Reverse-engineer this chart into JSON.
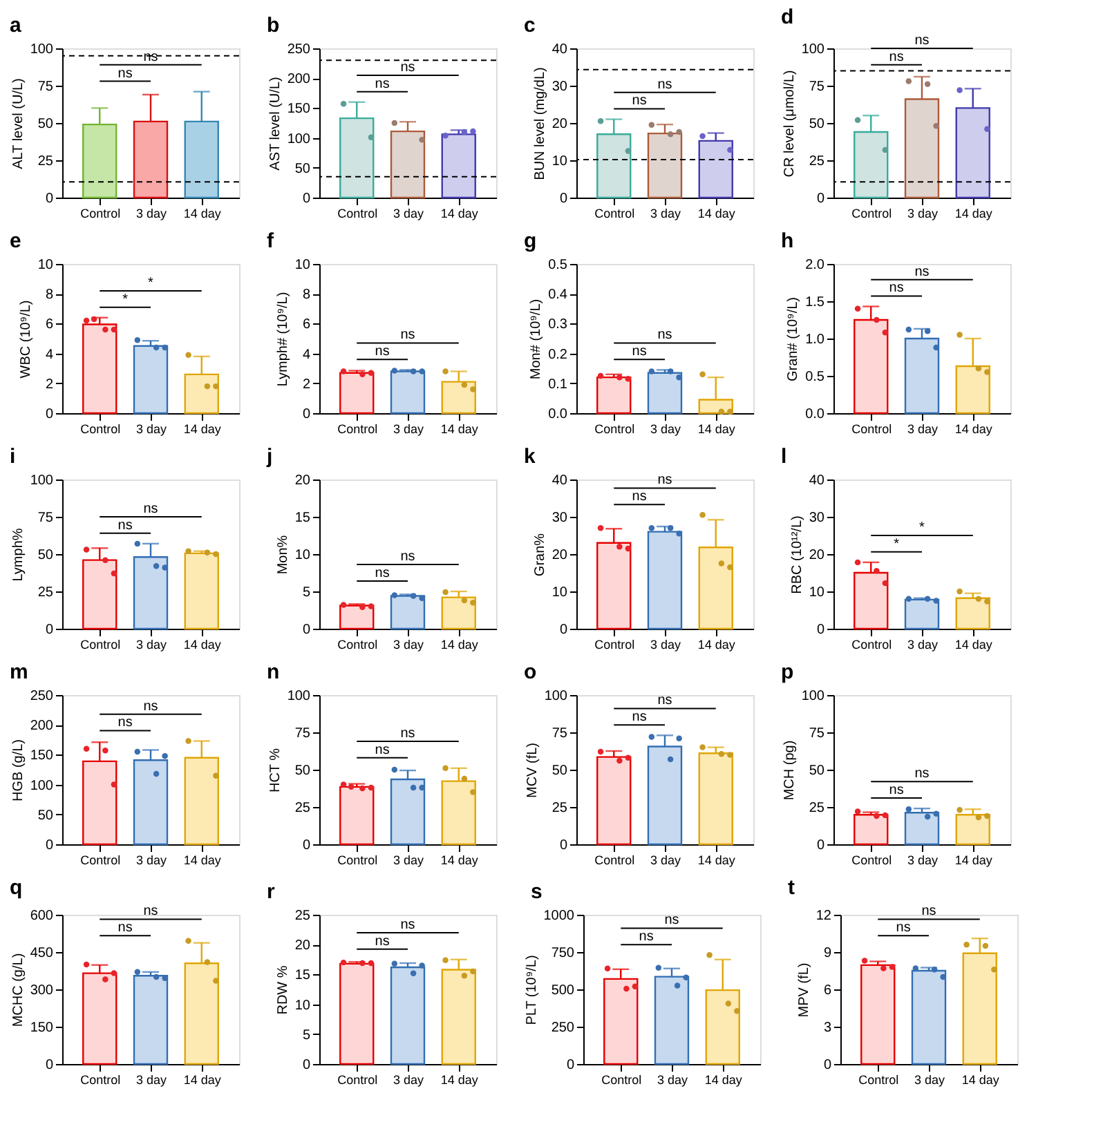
{
  "chart_data": [
    {
      "type": "bar",
      "title": "a",
      "ylabel": "ALT level (U/L)",
      "categories": [
        "Control",
        "3 day",
        "14 day"
      ],
      "ylim": [
        0,
        100
      ],
      "yticks": [
        0,
        25,
        50,
        75,
        100
      ],
      "ref_lines": [
        {
          "axis": "y",
          "value": 95,
          "line_style": "dashed",
          "color": "#000000"
        },
        {
          "axis": "y",
          "value": 10.5,
          "line_style": "dashed",
          "color": "#000000"
        }
      ],
      "annotations": [
        "ns",
        "ns"
      ],
      "series": [
        {
          "type": "bar",
          "colors": [
            "#c5e6a6",
            "#f9a7a7",
            "#a9d1e6"
          ],
          "values": [
            49,
            51,
            51
          ],
          "errors": [
            [
              49,
              60
            ],
            [
              51,
              69
            ],
            [
              51,
              71
            ]
          ]
        }
      ]
    },
    {
      "type": "bar",
      "title": "b",
      "ylabel": "AST level (U/L)",
      "categories": [
        "Control",
        "3 day",
        "14 day"
      ],
      "ylim": [
        0,
        250
      ],
      "yticks": [
        0,
        50,
        100,
        150,
        200,
        250
      ],
      "ref_lines": [
        {
          "axis": "y",
          "value": 230,
          "line_style": "dashed",
          "color": "#000000"
        },
        {
          "axis": "y",
          "value": 35,
          "line_style": "dashed",
          "color": "#000000"
        }
      ],
      "annotations": [
        "ns",
        "ns"
      ],
      "series": [
        {
          "type": "bar",
          "colors": [
            "#cfe3e0",
            "#e0d4cf",
            "#cfcdee"
          ],
          "values": [
            133,
            111,
            106
          ],
          "errors": [
            [
              133,
              160
            ],
            [
              111,
              127
            ],
            [
              106,
              113
            ]
          ]
        },
        {
          "type": "scatter",
          "x": [
            "Control",
            "Control",
            "3 day",
            "3 day",
            "14 day",
            "14 day",
            "14 day"
          ],
          "colors": [
            "#5b9e96",
            "#5b9e96",
            "#9b7b6e",
            "#9b7b6e",
            "#6a63c9",
            "#6a63c9",
            "#6a63c9"
          ],
          "values": [
            157,
            101,
            125,
            97,
            104,
            110,
            111
          ]
        }
      ]
    },
    {
      "type": "bar",
      "title": "c",
      "ylabel": "BUN level (mg/dL)",
      "categories": [
        "Control",
        "3 day",
        "14 day"
      ],
      "ylim": [
        0,
        40
      ],
      "yticks": [
        0,
        10,
        20,
        30,
        40
      ],
      "ref_lines": [
        {
          "axis": "y",
          "value": 34.3,
          "line_style": "dashed",
          "color": "#000000"
        },
        {
          "axis": "y",
          "value": 10.2,
          "line_style": "dashed",
          "color": "#000000"
        }
      ],
      "annotations": [
        "ns",
        "ns"
      ],
      "series": [
        {
          "type": "bar",
          "colors": [
            "#cfe3e0",
            "#e0d4cf",
            "#cfcdee"
          ],
          "values": [
            17,
            17.2,
            15.2
          ],
          "errors": [
            [
              17,
              21
            ],
            [
              17.2,
              19.6
            ],
            [
              15.2,
              17.3
            ]
          ]
        },
        {
          "type": "scatter",
          "x": [
            "Control",
            "Control",
            "3 day",
            "3 day",
            "3 day",
            "14 day",
            "14 day"
          ],
          "colors": [
            "#5b9e96",
            "#5b9e96",
            "#9b7b6e",
            "#9b7b6e",
            "#9b7b6e",
            "#6a63c9",
            "#6a63c9"
          ],
          "values": [
            20.5,
            12.5,
            19.5,
            17,
            17.6,
            16.5,
            12.8
          ]
        }
      ]
    },
    {
      "type": "bar",
      "title": "d",
      "ylabel": "CR level (μmol/L)",
      "categories": [
        "Control",
        "3 day",
        "14 day"
      ],
      "ylim": [
        0,
        100
      ],
      "yticks": [
        0,
        25,
        50,
        75,
        100
      ],
      "ref_lines": [
        {
          "axis": "y",
          "value": 85,
          "line_style": "dashed",
          "color": "#000000"
        },
        {
          "axis": "y",
          "value": 10.5,
          "line_style": "dashed",
          "color": "#000000"
        }
      ],
      "annotations": [
        "ns",
        "ns"
      ],
      "series": [
        {
          "type": "bar",
          "colors": [
            "#cfe3e0",
            "#e0d4cf",
            "#cfcdee"
          ],
          "values": [
            44,
            66,
            60
          ],
          "errors": [
            [
              44,
              55
            ],
            [
              66,
              81
            ],
            [
              60,
              73
            ]
          ]
        },
        {
          "type": "scatter",
          "x": [
            "Control",
            "Control",
            "3 day",
            "3 day",
            "3 day",
            "14 day",
            "14 day"
          ],
          "colors": [
            "#5b9e96",
            "#5b9e96",
            "#9b7b6e",
            "#9b7b6e",
            "#9b7b6e",
            "#6a63c9",
            "#6a63c9"
          ],
          "values": [
            52,
            32,
            78,
            76,
            48,
            72,
            46
          ]
        }
      ]
    },
    {
      "type": "bar",
      "title": "e",
      "ylabel": "WBC (10⁹/L)",
      "categories": [
        "Control",
        "3 day",
        "14 day"
      ],
      "ylim": [
        0,
        10
      ],
      "yticks": [
        0,
        2,
        4,
        6,
        8,
        10
      ],
      "annotations": [
        "*",
        "*"
      ],
      "series": [
        {
          "type": "bar",
          "colors": [
            "#ffd6d6",
            "#c6d9ef",
            "#fde9b2"
          ],
          "values": [
            5.95,
            4.5,
            2.6
          ],
          "errors": [
            [
              5.95,
              6.4
            ],
            [
              4.5,
              4.85
            ],
            [
              2.6,
              3.8
            ]
          ]
        },
        {
          "type": "scatter",
          "x": [
            "Control",
            "Control",
            "Control",
            "Control",
            "3 day",
            "3 day",
            "3 day",
            "14 day",
            "14 day",
            "14 day"
          ],
          "colors": [
            "#e8232a",
            "#e8232a",
            "#e8232a",
            "#e8232a",
            "#3a6fb0",
            "#3a6fb0",
            "#3a6fb0",
            "#c89b22",
            "#c89b22",
            "#c89b22"
          ],
          "values": [
            6.2,
            6.3,
            5.6,
            5.6,
            4.9,
            4.4,
            4.4,
            3.9,
            1.8,
            1.8
          ]
        }
      ]
    },
    {
      "type": "bar",
      "title": "f",
      "ylabel": "Lymph# (10⁹/L)",
      "categories": [
        "Control",
        "3 day",
        "14 day"
      ],
      "ylim": [
        0,
        10
      ],
      "yticks": [
        0,
        2,
        4,
        6,
        8,
        10
      ],
      "annotations": [
        "ns",
        "ns"
      ],
      "series": [
        {
          "type": "bar",
          "colors": [
            "#ffd6d6",
            "#c6d9ef",
            "#fde9b2"
          ],
          "values": [
            2.7,
            2.8,
            2.1
          ],
          "errors": [
            [
              2.7,
              2.85
            ],
            [
              2.8,
              2.9
            ],
            [
              2.1,
              2.8
            ]
          ]
        },
        {
          "type": "scatter",
          "x": [
            "Control",
            "Control",
            "Control",
            "3 day",
            "3 day",
            "3 day",
            "14 day",
            "14 day",
            "14 day"
          ],
          "colors": [
            "#e8232a",
            "#e8232a",
            "#e8232a",
            "#3a6fb0",
            "#3a6fb0",
            "#3a6fb0",
            "#c89b22",
            "#c89b22",
            "#c89b22"
          ],
          "values": [
            2.8,
            2.6,
            2.7,
            2.85,
            2.8,
            2.8,
            2.8,
            1.9,
            1.6
          ]
        }
      ]
    },
    {
      "type": "bar",
      "title": "g",
      "ylabel": "Mon# (10⁹/L)",
      "categories": [
        "Control",
        "3 day",
        "14 day"
      ],
      "ylim": [
        0,
        0.5
      ],
      "yticks": [
        {
          "value": 0,
          "label": "0.0"
        },
        0.1,
        0.2,
        0.3,
        0.4,
        0.5
      ],
      "annotations": [
        "ns",
        "ns"
      ],
      "series": [
        {
          "type": "bar",
          "colors": [
            "#ffd6d6",
            "#c6d9ef",
            "#fde9b2"
          ],
          "values": [
            0.12,
            0.135,
            0.045
          ],
          "errors": [
            [
              0.12,
              0.13
            ],
            [
              0.135,
              0.145
            ],
            [
              0.045,
              0.12
            ]
          ]
        },
        {
          "type": "scatter",
          "x": [
            "Control",
            "Control",
            "Control",
            "3 day",
            "3 day",
            "3 day",
            "14 day",
            "14 day",
            "14 day"
          ],
          "colors": [
            "#e8232a",
            "#e8232a",
            "#e8232a",
            "#3a6fb0",
            "#3a6fb0",
            "#3a6fb0",
            "#c89b22",
            "#c89b22",
            "#c89b22"
          ],
          "values": [
            0.125,
            0.12,
            0.115,
            0.14,
            0.14,
            0.12,
            0.13,
            0.005,
            0.005
          ]
        }
      ]
    },
    {
      "type": "bar",
      "title": "h",
      "ylabel": "Gran# (10⁹/L)",
      "categories": [
        "Control",
        "3 day",
        "14 day"
      ],
      "ylim": [
        0,
        2
      ],
      "yticks": [
        {
          "value": 0,
          "label": "0.0"
        },
        0.5,
        {
          "value": 1,
          "label": "1.0"
        },
        1.5,
        {
          "value": 2,
          "label": "2.0"
        }
      ],
      "annotations": [
        "ns",
        "ns"
      ],
      "series": [
        {
          "type": "bar",
          "colors": [
            "#ffd6d6",
            "#c6d9ef",
            "#fde9b2"
          ],
          "values": [
            1.25,
            1.0,
            0.63
          ],
          "errors": [
            [
              1.25,
              1.43
            ],
            [
              1.0,
              1.13
            ],
            [
              0.63,
              1.0
            ]
          ]
        },
        {
          "type": "scatter",
          "x": [
            "Control",
            "Control",
            "Control",
            "3 day",
            "3 day",
            "3 day",
            "14 day",
            "14 day",
            "14 day"
          ],
          "colors": [
            "#e8232a",
            "#e8232a",
            "#e8232a",
            "#3a6fb0",
            "#3a6fb0",
            "#3a6fb0",
            "#c89b22",
            "#c89b22",
            "#c89b22"
          ],
          "values": [
            1.4,
            1.25,
            1.08,
            1.12,
            1.1,
            0.88,
            1.05,
            0.6,
            0.55
          ]
        }
      ]
    },
    {
      "type": "bar",
      "title": "i",
      "ylabel": "Lymph%",
      "categories": [
        "Control",
        "3 day",
        "14 day"
      ],
      "ylim": [
        0,
        100
      ],
      "yticks": [
        0,
        25,
        50,
        75,
        100
      ],
      "annotations": [
        "ns",
        "ns"
      ],
      "series": [
        {
          "type": "bar",
          "colors": [
            "#ffd6d6",
            "#c6d9ef",
            "#fde9b2"
          ],
          "values": [
            46,
            48,
            50.5
          ],
          "errors": [
            [
              46,
              54
            ],
            [
              48,
              57
            ],
            [
              50.5,
              52
            ]
          ]
        },
        {
          "type": "scatter",
          "x": [
            "Control",
            "Control",
            "Control",
            "3 day",
            "3 day",
            "3 day",
            "14 day",
            "14 day",
            "14 day"
          ],
          "colors": [
            "#e8232a",
            "#e8232a",
            "#e8232a",
            "#3a6fb0",
            "#3a6fb0",
            "#3a6fb0",
            "#c89b22",
            "#c89b22",
            "#c89b22"
          ],
          "values": [
            53,
            46,
            37,
            57,
            42,
            41,
            52,
            51,
            50
          ]
        }
      ]
    },
    {
      "type": "bar",
      "title": "j",
      "ylabel": "Mon%",
      "categories": [
        "Control",
        "3 day",
        "14 day"
      ],
      "ylim": [
        0,
        20
      ],
      "yticks": [
        0,
        5,
        10,
        15,
        20
      ],
      "annotations": [
        "ns",
        "ns"
      ],
      "series": [
        {
          "type": "bar",
          "colors": [
            "#ffd6d6",
            "#c6d9ef",
            "#fde9b2"
          ],
          "values": [
            3.1,
            4.4,
            4.2
          ],
          "errors": [
            [
              3.1,
              3.3
            ],
            [
              4.4,
              4.6
            ],
            [
              4.2,
              5.0
            ]
          ]
        },
        {
          "type": "scatter",
          "x": [
            "Control",
            "Control",
            "Control",
            "3 day",
            "3 day",
            "3 day",
            "14 day",
            "14 day",
            "14 day"
          ],
          "colors": [
            "#e8232a",
            "#e8232a",
            "#e8232a",
            "#3a6fb0",
            "#3a6fb0",
            "#3a6fb0",
            "#c89b22",
            "#c89b22",
            "#c89b22"
          ],
          "values": [
            3.2,
            2.9,
            3.0,
            4.5,
            4.4,
            4.1,
            4.9,
            3.8,
            3.5
          ]
        }
      ]
    },
    {
      "type": "bar",
      "title": "k",
      "ylabel": "Gran%",
      "categories": [
        "Control",
        "3 day",
        "14 day"
      ],
      "ylim": [
        0,
        40
      ],
      "yticks": [
        0,
        10,
        20,
        30,
        40
      ],
      "annotations": [
        "ns",
        "ns"
      ],
      "series": [
        {
          "type": "bar",
          "colors": [
            "#ffd6d6",
            "#c6d9ef",
            "#fde9b2"
          ],
          "values": [
            23,
            26,
            21.8
          ],
          "errors": [
            [
              23,
              26.8
            ],
            [
              26,
              27.4
            ],
            [
              21.8,
              29.2
            ]
          ]
        },
        {
          "type": "scatter",
          "x": [
            "Control",
            "Control",
            "Control",
            "3 day",
            "3 day",
            "3 day",
            "14 day",
            "14 day",
            "14 day"
          ],
          "colors": [
            "#e8232a",
            "#e8232a",
            "#e8232a",
            "#3a6fb0",
            "#3a6fb0",
            "#3a6fb0",
            "#c89b22",
            "#c89b22",
            "#c89b22"
          ],
          "values": [
            27,
            22,
            21.5,
            27,
            27,
            25.5,
            30.5,
            17.5,
            16.5
          ]
        }
      ]
    },
    {
      "type": "bar",
      "title": "l",
      "ylabel": "RBC (10¹²/L)",
      "categories": [
        "Control",
        "3 day",
        "14 day"
      ],
      "ylim": [
        0,
        40
      ],
      "yticks": [
        0,
        10,
        20,
        30,
        40
      ],
      "annotations": [
        "*",
        "*"
      ],
      "series": [
        {
          "type": "bar",
          "colors": [
            "#ffd6d6",
            "#c6d9ef",
            "#fde9b2"
          ],
          "values": [
            15,
            7.8,
            8.2
          ],
          "errors": [
            [
              15,
              17.8
            ],
            [
              7.8,
              8.2
            ],
            [
              8.2,
              9.5
            ]
          ]
        },
        {
          "type": "scatter",
          "x": [
            "Control",
            "Control",
            "Control",
            "3 day",
            "3 day",
            "3 day",
            "14 day",
            "14 day",
            "14 day"
          ],
          "colors": [
            "#e8232a",
            "#e8232a",
            "#e8232a",
            "#3a6fb0",
            "#3a6fb0",
            "#3a6fb0",
            "#c89b22",
            "#c89b22",
            "#c89b22"
          ],
          "values": [
            17.8,
            15.5,
            12.2,
            8,
            8,
            7.5,
            10,
            8,
            7.3
          ]
        }
      ]
    },
    {
      "type": "bar",
      "title": "m",
      "ylabel": "HGB (g/L)",
      "categories": [
        "Control",
        "3 day",
        "14 day"
      ],
      "ylim": [
        0,
        250
      ],
      "yticks": [
        0,
        50,
        100,
        150,
        200,
        250
      ],
      "annotations": [
        "ns",
        "ns"
      ],
      "series": [
        {
          "type": "bar",
          "colors": [
            "#ffd6d6",
            "#c6d9ef",
            "#fde9b2"
          ],
          "values": [
            139,
            141,
            145
          ],
          "errors": [
            [
              139,
              171
            ],
            [
              141,
              158
            ],
            [
              145,
              173
            ]
          ]
        },
        {
          "type": "scatter",
          "x": [
            "Control",
            "Control",
            "Control",
            "3 day",
            "3 day",
            "3 day",
            "14 day",
            "14 day"
          ],
          "colors": [
            "#e8232a",
            "#e8232a",
            "#e8232a",
            "#3a6fb0",
            "#3a6fb0",
            "#3a6fb0",
            "#c89b22",
            "#c89b22"
          ],
          "values": [
            160,
            157,
            100,
            155,
            118,
            148,
            173,
            115
          ]
        }
      ]
    },
    {
      "type": "bar",
      "title": "n",
      "ylabel": "HCT %",
      "categories": [
        "Control",
        "3 day",
        "14 day"
      ],
      "ylim": [
        0,
        100
      ],
      "yticks": [
        0,
        25,
        50,
        75,
        100
      ],
      "annotations": [
        "ns",
        "ns"
      ],
      "series": [
        {
          "type": "bar",
          "colors": [
            "#ffd6d6",
            "#c6d9ef",
            "#fde9b2"
          ],
          "values": [
            38.5,
            43.5,
            42.3
          ],
          "errors": [
            [
              38.5,
              40.5
            ],
            [
              43.5,
              49.5
            ],
            [
              42.3,
              51
            ]
          ]
        },
        {
          "type": "scatter",
          "x": [
            "Control",
            "Control",
            "Control",
            "Control",
            "3 day",
            "3 day",
            "3 day",
            "14 day",
            "14 day",
            "14 day"
          ],
          "colors": [
            "#e8232a",
            "#e8232a",
            "#e8232a",
            "#e8232a",
            "#3a6fb0",
            "#3a6fb0",
            "#3a6fb0",
            "#c89b22",
            "#c89b22",
            "#c89b22"
          ],
          "values": [
            40,
            38.5,
            37.5,
            38,
            50,
            38,
            38,
            51,
            44,
            35
          ]
        }
      ]
    },
    {
      "type": "bar",
      "title": "o",
      "ylabel": "MCV (fL)",
      "categories": [
        "Control",
        "3 day",
        "14 day"
      ],
      "ylim": [
        0,
        100
      ],
      "yticks": [
        0,
        25,
        50,
        75,
        100
      ],
      "annotations": [
        "ns",
        "ns"
      ],
      "series": [
        {
          "type": "bar",
          "colors": [
            "#ffd6d6",
            "#c6d9ef",
            "#fde9b2"
          ],
          "values": [
            58.5,
            65.5,
            61
          ],
          "errors": [
            [
              58.5,
              62.5
            ],
            [
              65.5,
              73
            ],
            [
              61,
              65
            ]
          ]
        },
        {
          "type": "scatter",
          "x": [
            "Control",
            "Control",
            "Control",
            "3 day",
            "3 day",
            "3 day",
            "14 day",
            "14 day",
            "14 day"
          ],
          "colors": [
            "#e8232a",
            "#e8232a",
            "#e8232a",
            "#3a6fb0",
            "#3a6fb0",
            "#3a6fb0",
            "#c89b22",
            "#c89b22",
            "#c89b22"
          ],
          "values": [
            62,
            56,
            58,
            72,
            57,
            71,
            65,
            60.5,
            60
          ]
        }
      ]
    },
    {
      "type": "bar",
      "title": "p",
      "ylabel": "MCH (pg)",
      "categories": [
        "Control",
        "3 day",
        "14 day"
      ],
      "ylim": [
        0,
        100
      ],
      "yticks": [
        0,
        25,
        50,
        75,
        100
      ],
      "annotations": [
        "ns",
        "ns"
      ],
      "series": [
        {
          "type": "bar",
          "colors": [
            "#ffd6d6",
            "#c6d9ef",
            "#fde9b2"
          ],
          "values": [
            19.8,
            21.2,
            19.8
          ],
          "errors": [
            [
              19.8,
              21.5
            ],
            [
              21.2,
              24
            ],
            [
              19.8,
              23.5
            ]
          ]
        },
        {
          "type": "scatter",
          "x": [
            "Control",
            "Control",
            "Control",
            "3 day",
            "3 day",
            "3 day",
            "14 day",
            "14 day",
            "14 day"
          ],
          "colors": [
            "#e8232a",
            "#e8232a",
            "#e8232a",
            "#3a6fb0",
            "#3a6fb0",
            "#3a6fb0",
            "#c89b22",
            "#c89b22",
            "#c89b22"
          ],
          "values": [
            22,
            19,
            19.5,
            23.5,
            18.5,
            20.5,
            23,
            18,
            19
          ]
        }
      ]
    },
    {
      "type": "bar",
      "title": "q",
      "ylabel": "MCHC (g/L)",
      "categories": [
        "Control",
        "3 day",
        "14 day"
      ],
      "ylim": [
        0,
        600
      ],
      "yticks": [
        0,
        150,
        300,
        450,
        600
      ],
      "annotations": [
        "ns",
        "ns"
      ],
      "series": [
        {
          "type": "bar",
          "colors": [
            "#ffd6d6",
            "#c6d9ef",
            "#fde9b2"
          ],
          "values": [
            365,
            355,
            405
          ],
          "errors": [
            [
              365,
              398
            ],
            [
              355,
              370
            ],
            [
              405,
              487
            ]
          ]
        },
        {
          "type": "scatter",
          "x": [
            "Control",
            "Control",
            "Control",
            "3 day",
            "3 day",
            "3 day",
            "14 day",
            "14 day",
            "14 day"
          ],
          "colors": [
            "#e8232a",
            "#e8232a",
            "#e8232a",
            "#3a6fb0",
            "#3a6fb0",
            "#3a6fb0",
            "#c89b22",
            "#c89b22",
            "#c89b22"
          ],
          "values": [
            400,
            340,
            365,
            370,
            350,
            345,
            495,
            410,
            335
          ]
        }
      ]
    },
    {
      "type": "bar",
      "title": "r",
      "ylabel": "RDW %",
      "categories": [
        "Control",
        "3 day",
        "14 day"
      ],
      "ylim": [
        0,
        25
      ],
      "yticks": [
        0,
        5,
        10,
        15,
        20,
        25
      ],
      "annotations": [
        "ns",
        "ns"
      ],
      "series": [
        {
          "type": "bar",
          "colors": [
            "#ffd6d6",
            "#c6d9ef",
            "#fde9b2"
          ],
          "values": [
            16.8,
            16.2,
            15.8
          ],
          "errors": [
            [
              16.8,
              17.1
            ],
            [
              16.2,
              16.9
            ],
            [
              15.8,
              17.5
            ]
          ]
        },
        {
          "type": "scatter",
          "x": [
            "Control",
            "Control",
            "Control",
            "3 day",
            "3 day",
            "3 day",
            "14 day",
            "14 day",
            "14 day"
          ],
          "colors": [
            "#e8232a",
            "#e8232a",
            "#e8232a",
            "#3a6fb0",
            "#3a6fb0",
            "#3a6fb0",
            "#c89b22",
            "#c89b22",
            "#c89b22"
          ],
          "values": [
            17,
            16.9,
            16.9,
            16.8,
            15.2,
            16.5,
            17.4,
            14.8,
            15.5
          ]
        }
      ]
    },
    {
      "type": "bar",
      "title": "s",
      "ylabel": "PLT (10⁹/L)",
      "categories": [
        "Control",
        "3 day",
        "14 day"
      ],
      "ylim": [
        0,
        1000
      ],
      "yticks": [
        0,
        250,
        500,
        750,
        1000
      ],
      "annotations": [
        "ns",
        "ns"
      ],
      "series": [
        {
          "type": "bar",
          "colors": [
            "#ffd6d6",
            "#c6d9ef",
            "#fde9b2"
          ],
          "values": [
            570,
            585,
            495
          ],
          "errors": [
            [
              570,
              635
            ],
            [
              585,
              640
            ],
            [
              495,
              700
            ]
          ]
        },
        {
          "type": "scatter",
          "x": [
            "Control",
            "Control",
            "Control",
            "3 day",
            "3 day",
            "3 day",
            "14 day",
            "14 day",
            "14 day"
          ],
          "colors": [
            "#e8232a",
            "#e8232a",
            "#e8232a",
            "#3a6fb0",
            "#3a6fb0",
            "#3a6fb0",
            "#c89b22",
            "#c89b22",
            "#c89b22"
          ],
          "values": [
            640,
            505,
            520,
            645,
            525,
            580,
            730,
            405,
            355
          ]
        }
      ]
    },
    {
      "type": "bar",
      "title": "t",
      "ylabel": "MPV (fL)",
      "categories": [
        "Control",
        "3 day",
        "14 day"
      ],
      "ylim": [
        0,
        12
      ],
      "yticks": [
        0,
        3,
        6,
        9,
        12
      ],
      "annotations": [
        "ns",
        "ns"
      ],
      "series": [
        {
          "type": "bar",
          "colors": [
            "#ffd6d6",
            "#c6d9ef",
            "#fde9b2"
          ],
          "values": [
            7.95,
            7.5,
            8.9
          ],
          "errors": [
            [
              7.95,
              8.25
            ],
            [
              7.5,
              7.75
            ],
            [
              8.9,
              10.1
            ]
          ]
        },
        {
          "type": "scatter",
          "x": [
            "Control",
            "Control",
            "Control",
            "3 day",
            "3 day",
            "3 day",
            "14 day",
            "14 day",
            "14 day"
          ],
          "colors": [
            "#e8232a",
            "#e8232a",
            "#e8232a",
            "#3a6fb0",
            "#3a6fb0",
            "#3a6fb0",
            "#c89b22",
            "#c89b22",
            "#c89b22"
          ],
          "values": [
            8.3,
            7.7,
            7.8,
            7.7,
            7.6,
            7.0,
            9.6,
            9.5,
            7.6
          ]
        }
      ]
    }
  ]
}
